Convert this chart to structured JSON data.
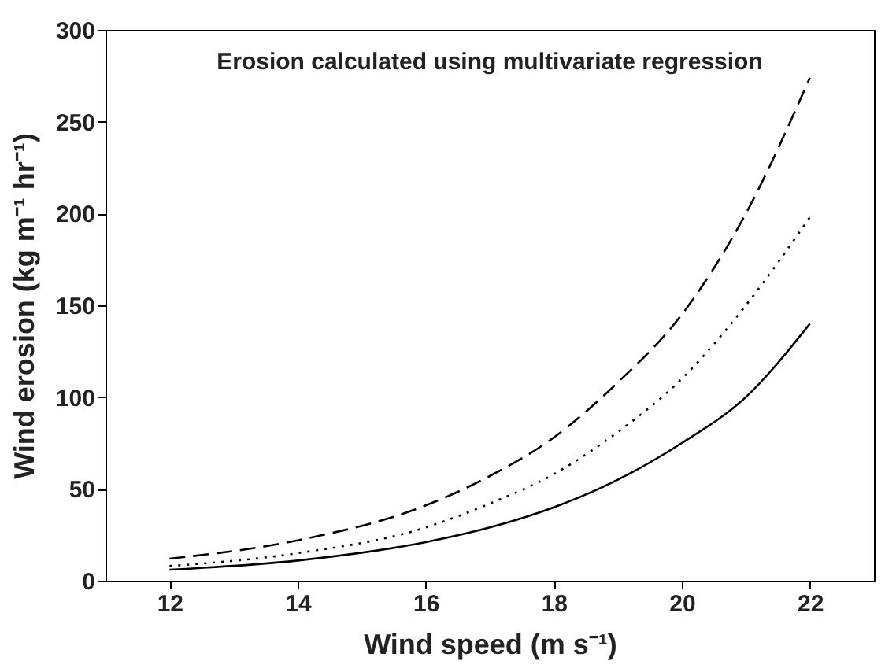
{
  "chart_data": {
    "type": "line",
    "annotations": [
      "Erosion calculated using multivariate regression"
    ],
    "xlabel": "Wind speed (m s⁻¹)",
    "ylabel": "Wind erosion (kg m⁻¹ hr⁻¹)",
    "x": [
      12,
      14,
      16,
      17,
      18,
      19,
      20,
      21,
      22
    ],
    "series": [
      {
        "color": "#000000",
        "line_style": "dashed",
        "values": [
          12,
          22,
          41,
          57,
          78,
          108,
          145,
          200,
          274
        ]
      },
      {
        "color": "#000000",
        "line_style": "dotted",
        "values": [
          8,
          15,
          29,
          42,
          58,
          81,
          110,
          150,
          198
        ]
      },
      {
        "color": "#000000",
        "line_style": "solid",
        "values": [
          6,
          11,
          21,
          29,
          40,
          55,
          75,
          100,
          140
        ]
      }
    ],
    "xlim": [
      11,
      23
    ],
    "xticks": [
      12,
      14,
      16,
      18,
      20,
      22
    ],
    "ylim": [
      0,
      300
    ],
    "yticks": [
      0,
      50,
      100,
      150,
      200,
      250,
      300
    ],
    "grid": false,
    "marker": "none"
  }
}
